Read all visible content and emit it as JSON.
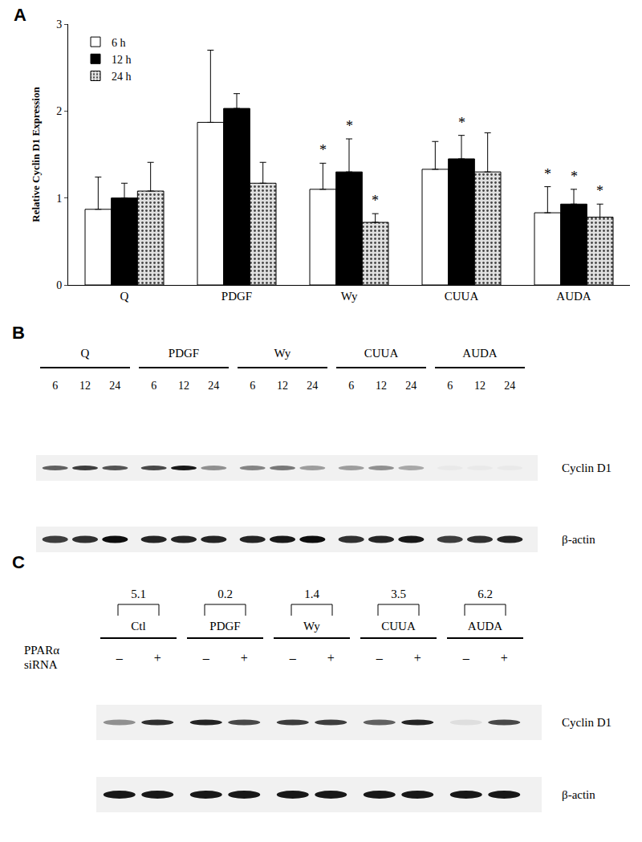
{
  "chart_data": {
    "type": "bar",
    "panel": "A",
    "y_label": "Relative Cyclin D1 Expression",
    "categories": [
      "Q",
      "PDGF",
      "Wy",
      "CUUA",
      "AUDA"
    ],
    "series": [
      {
        "name": "6 h",
        "color": "#ffffff",
        "marker": "solid",
        "values": [
          0.87,
          1.87,
          1.1,
          1.33,
          0.83
        ],
        "errors": [
          0.37,
          0.83,
          0.3,
          0.32,
          0.3
        ],
        "annotations": [
          null,
          null,
          "*",
          null,
          "*"
        ]
      },
      {
        "name": "12 h",
        "color": "#000000",
        "marker": "solid",
        "values": [
          1.0,
          2.03,
          1.3,
          1.45,
          0.93
        ],
        "errors": [
          0.17,
          0.17,
          0.38,
          0.27,
          0.17
        ],
        "annotations": [
          null,
          null,
          "*",
          "*",
          "*"
        ]
      },
      {
        "name": "24 h",
        "color": "#e0e0e0",
        "marker": "dotted",
        "values": [
          1.08,
          1.17,
          0.72,
          1.3,
          0.78
        ],
        "errors": [
          0.33,
          0.24,
          0.1,
          0.45,
          0.15
        ],
        "annotations": [
          null,
          null,
          "*",
          null,
          "*"
        ]
      }
    ],
    "ylim": [
      0,
      3
    ],
    "yticks": [
      0,
      1,
      2,
      3
    ],
    "grid": false,
    "legend": "upper left"
  },
  "blot_b": {
    "panel": "B",
    "groups": [
      "Q",
      "PDGF",
      "Wy",
      "CUUA",
      "AUDA"
    ],
    "lanes": [
      "6",
      "12",
      "24"
    ],
    "rows": [
      {
        "label": "Cyclin D1",
        "band_intensity": [
          0.6,
          0.75,
          0.65,
          0.7,
          0.9,
          0.4,
          0.45,
          0.5,
          0.35,
          0.35,
          0.4,
          0.3,
          0.03,
          0.03,
          0.03
        ]
      },
      {
        "label": "β-actin",
        "band_intensity": [
          0.75,
          0.8,
          0.95,
          0.85,
          0.85,
          0.85,
          0.85,
          0.9,
          0.95,
          0.8,
          0.85,
          0.9,
          0.75,
          0.8,
          0.85
        ]
      }
    ]
  },
  "blot_c": {
    "panel": "C",
    "groups": [
      {
        "label": "Ctl",
        "ratio": 5.1
      },
      {
        "label": "PDGF",
        "ratio": 0.2
      },
      {
        "label": "Wy",
        "ratio": 1.4
      },
      {
        "label": "CUUA",
        "ratio": 3.5
      },
      {
        "label": "AUDA",
        "ratio": 6.2
      }
    ],
    "lane_label": [
      "PPARα",
      "siRNA"
    ],
    "signs": [
      "–",
      "+"
    ],
    "rows": [
      {
        "label": "Cyclin D1",
        "band_intensity": [
          0.4,
          0.8,
          0.85,
          0.7,
          0.75,
          0.75,
          0.6,
          0.85,
          0.08,
          0.7
        ]
      },
      {
        "label": "β-actin",
        "band_intensity": [
          0.9,
          0.9,
          0.9,
          0.9,
          0.9,
          0.9,
          0.9,
          0.9,
          0.9,
          0.9
        ]
      }
    ]
  }
}
